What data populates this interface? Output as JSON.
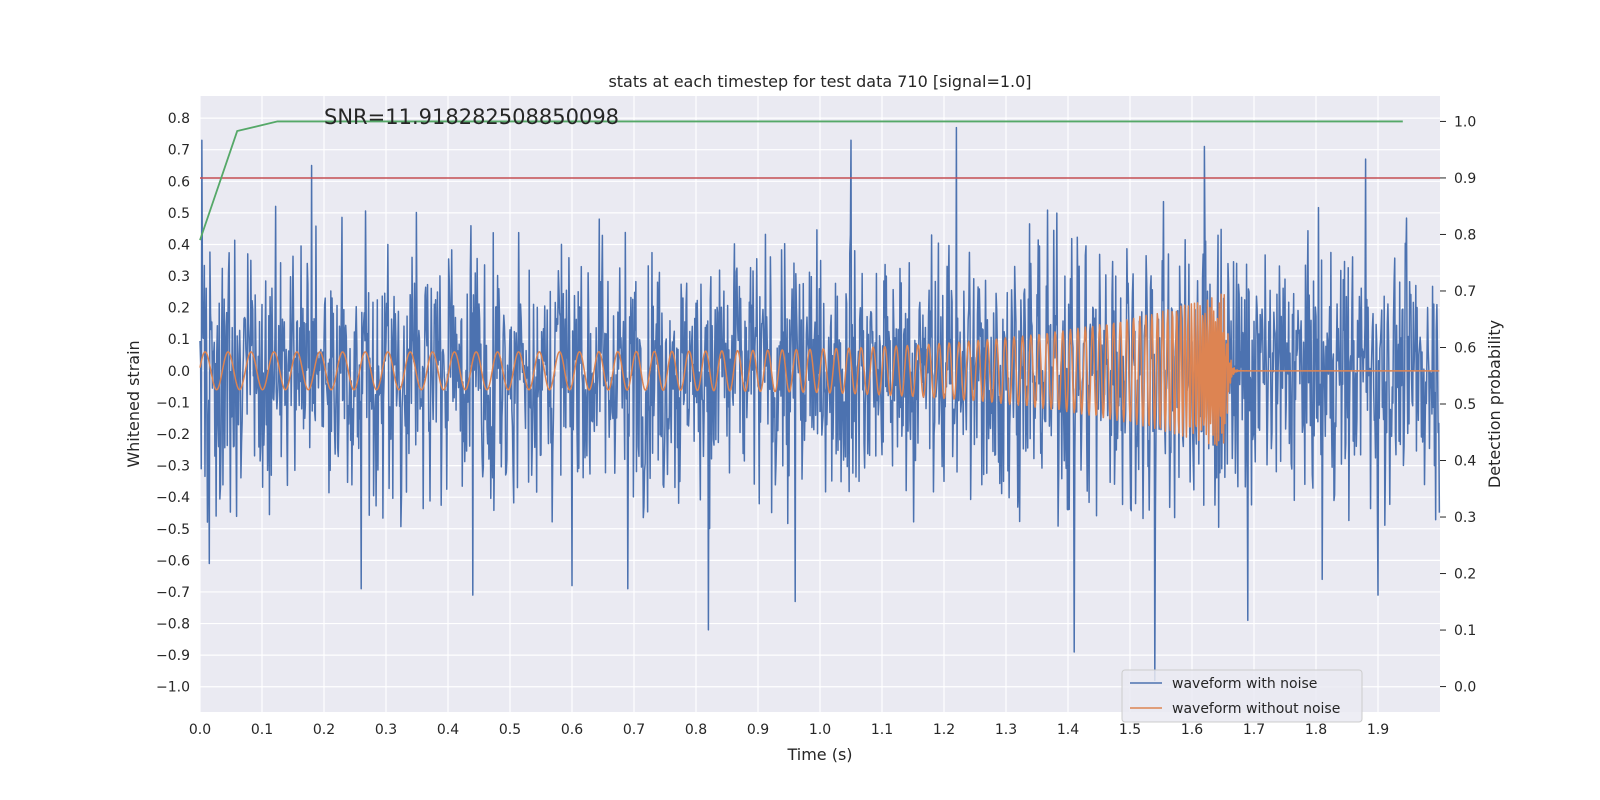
{
  "chart_data": {
    "type": "line",
    "title": "stats at each timestep for test data 710 [signal=1.0]",
    "xlabel": "Time (s)",
    "ylabel": "Whitened strain",
    "y2label": "Detection probability",
    "annotation": "SNR=11.918282508850098",
    "xlim": [
      0.0,
      2.0
    ],
    "ylim": [
      -1.08,
      0.87
    ],
    "y2lim": [
      -0.045,
      1.045
    ],
    "x_ticks": [
      "0.0",
      "0.1",
      "0.2",
      "0.3",
      "0.4",
      "0.5",
      "0.6",
      "0.7",
      "0.8",
      "0.9",
      "1.0",
      "1.1",
      "1.2",
      "1.3",
      "1.4",
      "1.5",
      "1.6",
      "1.7",
      "1.8",
      "1.9"
    ],
    "y_ticks": [
      "0.8",
      "0.7",
      "0.6",
      "0.5",
      "0.4",
      "0.3",
      "0.2",
      "0.1",
      "0.0",
      "−0.1",
      "−0.2",
      "−0.3",
      "−0.4",
      "−0.5",
      "−0.6",
      "−0.7",
      "−0.8",
      "−0.9",
      "−1.0"
    ],
    "y2_ticks": [
      "1.0",
      "0.9",
      "0.8",
      "0.7",
      "0.6",
      "0.5",
      "0.4",
      "0.3",
      "0.2",
      "0.1",
      "0.0"
    ],
    "grid": true,
    "legend_position": "lower-right",
    "colors": {
      "noisy": "#4c72b0",
      "clean": "#dd8452",
      "probability": "#55a868",
      "threshold": "#c44e52",
      "background": "#eaeaf2",
      "grid": "#ffffff"
    },
    "series": [
      {
        "name": "waveform with noise",
        "axis": "left",
        "summary": {
          "min": -0.98,
          "max": 0.77,
          "typical_range": [
            -0.5,
            0.55
          ]
        },
        "peaks": [
          {
            "x": 0.003,
            "y": 0.73
          },
          {
            "x": 0.015,
            "y": -0.61
          },
          {
            "x": 0.18,
            "y": 0.65
          },
          {
            "x": 0.26,
            "y": -0.69
          },
          {
            "x": 0.44,
            "y": -0.71
          },
          {
            "x": 0.6,
            "y": -0.68
          },
          {
            "x": 0.69,
            "y": -0.69
          },
          {
            "x": 0.82,
            "y": -0.82
          },
          {
            "x": 0.96,
            "y": -0.73
          },
          {
            "x": 1.05,
            "y": 0.73
          },
          {
            "x": 1.22,
            "y": 0.77
          },
          {
            "x": 1.41,
            "y": -0.89
          },
          {
            "x": 1.54,
            "y": -0.98
          },
          {
            "x": 1.62,
            "y": 0.71
          },
          {
            "x": 1.69,
            "y": -0.79
          },
          {
            "x": 1.81,
            "y": -0.66
          },
          {
            "x": 1.88,
            "y": 0.67
          },
          {
            "x": 1.9,
            "y": -0.71
          }
        ]
      },
      {
        "name": "waveform without noise",
        "axis": "left",
        "summary": {
          "amplitude_start": 0.06,
          "amplitude_end": 0.25,
          "merger_time": 1.655,
          "ringdown_value": 0.0
        }
      },
      {
        "axis": "right",
        "x": [
          0.0,
          0.06,
          0.125,
          0.25,
          0.5,
          1.0,
          1.5,
          1.94
        ],
        "values": [
          0.79,
          0.983,
          1.0,
          1.0,
          1.0,
          1.0,
          1.0,
          1.0
        ]
      },
      {
        "axis": "right",
        "x": [
          0.0,
          2.0
        ],
        "values": [
          0.9,
          0.9
        ]
      }
    ]
  }
}
